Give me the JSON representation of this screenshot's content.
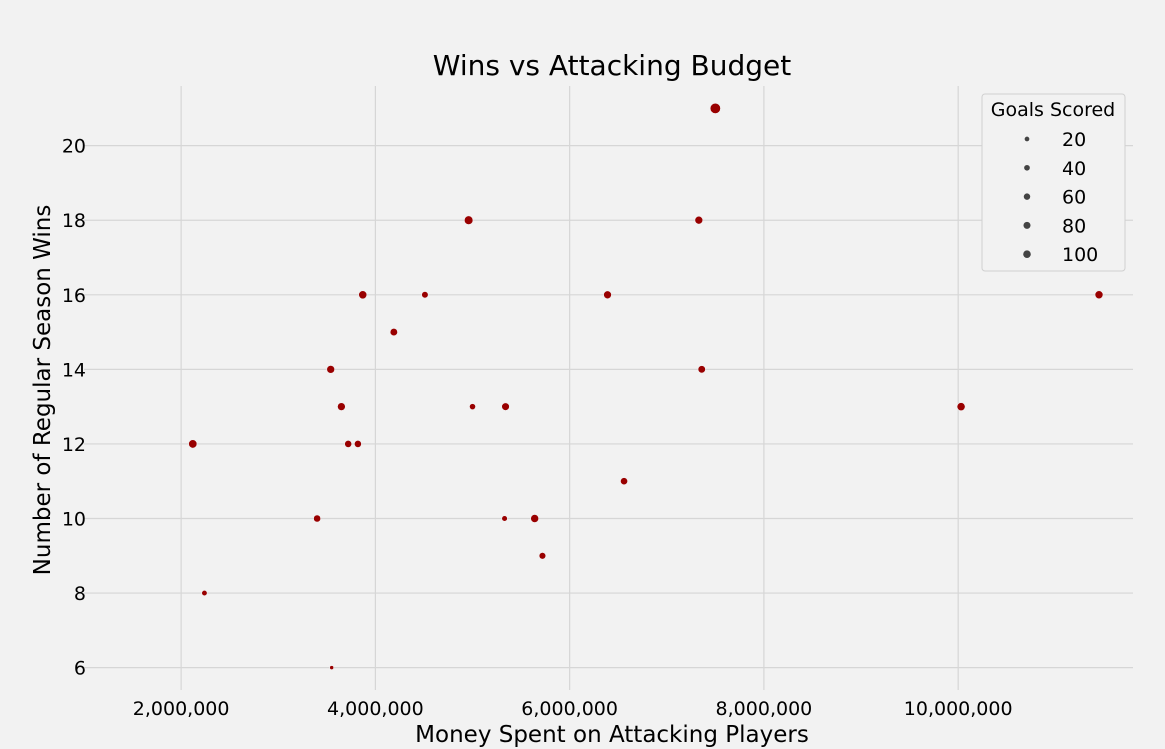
{
  "chart_data": {
    "type": "scatter",
    "title": "Wins vs Attacking Budget",
    "xlabel": "Money Spent on Attacking Players",
    "ylabel": "Number of Regular Season Wins",
    "xlim": [
      1000000,
      11800000
    ],
    "ylim": [
      5.4,
      21.6
    ],
    "xticks": [
      2000000,
      4000000,
      6000000,
      8000000,
      10000000
    ],
    "xtick_labels": [
      "2,000,000",
      "4,000,000",
      "6,000,000",
      "8,000,000",
      "10,000,000"
    ],
    "yticks": [
      6,
      8,
      10,
      12,
      14,
      16,
      18,
      20
    ],
    "ytick_labels": [
      "6",
      "8",
      "10",
      "12",
      "14",
      "16",
      "18",
      "20"
    ],
    "grid": true,
    "marker_color": "#990000",
    "background_color": "#f2f2f2",
    "grid_color": "#d6d6d6",
    "size_legend": {
      "title": "Goals Scored",
      "placement": "top-right",
      "entries": [
        {
          "label": "20",
          "value": 20
        },
        {
          "label": "40",
          "value": 40
        },
        {
          "label": "60",
          "value": 60
        },
        {
          "label": "80",
          "value": 80
        },
        {
          "label": "100",
          "value": 100
        }
      ]
    },
    "points": [
      {
        "x": 2120000,
        "y": 12,
        "goals": 65
      },
      {
        "x": 2240000,
        "y": 8,
        "goals": 28
      },
      {
        "x": 3400000,
        "y": 10,
        "goals": 48
      },
      {
        "x": 3540000,
        "y": 14,
        "goals": 58
      },
      {
        "x": 3550000,
        "y": 6,
        "goals": 15
      },
      {
        "x": 3650000,
        "y": 13,
        "goals": 58
      },
      {
        "x": 3720000,
        "y": 12,
        "goals": 48
      },
      {
        "x": 3820000,
        "y": 12,
        "goals": 48
      },
      {
        "x": 3870000,
        "y": 16,
        "goals": 62
      },
      {
        "x": 4190000,
        "y": 15,
        "goals": 52
      },
      {
        "x": 4510000,
        "y": 16,
        "goals": 40
      },
      {
        "x": 4960000,
        "y": 18,
        "goals": 70
      },
      {
        "x": 5000000,
        "y": 13,
        "goals": 35
      },
      {
        "x": 5330000,
        "y": 10,
        "goals": 30
      },
      {
        "x": 5340000,
        "y": 13,
        "goals": 55
      },
      {
        "x": 5640000,
        "y": 10,
        "goals": 60
      },
      {
        "x": 5720000,
        "y": 9,
        "goals": 42
      },
      {
        "x": 6390000,
        "y": 16,
        "goals": 58
      },
      {
        "x": 6560000,
        "y": 11,
        "goals": 48
      },
      {
        "x": 7330000,
        "y": 18,
        "goals": 58
      },
      {
        "x": 7360000,
        "y": 14,
        "goals": 52
      },
      {
        "x": 7500000,
        "y": 21,
        "goals": 100
      },
      {
        "x": 10030000,
        "y": 13,
        "goals": 62
      },
      {
        "x": 11450000,
        "y": 16,
        "goals": 60
      }
    ]
  }
}
